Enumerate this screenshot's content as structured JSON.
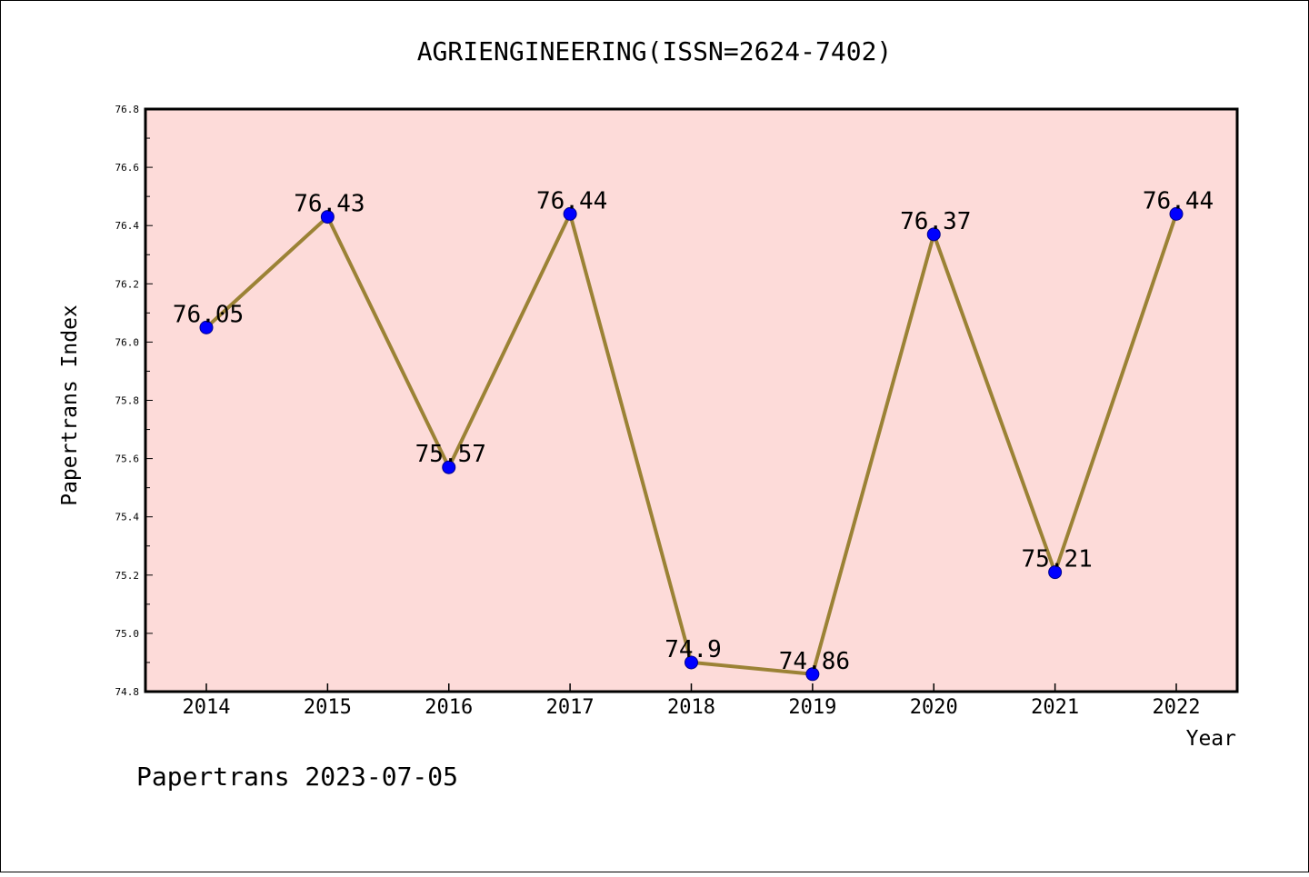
{
  "chart_data": {
    "type": "line",
    "title": "AGRIENGINEERING(ISSN=2624-7402)",
    "xlabel": "Year",
    "ylabel": "Papertrans Index",
    "categories": [
      "2014",
      "2015",
      "2016",
      "2017",
      "2018",
      "2019",
      "2020",
      "2021",
      "2022"
    ],
    "series": [
      {
        "values": [
          76.05,
          76.43,
          75.57,
          76.44,
          74.9,
          74.86,
          76.37,
          75.21,
          76.44
        ],
        "labels": [
          "76.05",
          "76.43",
          "75.57",
          "76.44",
          "74.9",
          "74.86",
          "76.37",
          "75.21",
          "76.44"
        ]
      }
    ],
    "ylim": [
      74.8,
      76.8
    ],
    "yticks": [
      "74.8",
      "75.0",
      "75.2",
      "75.4",
      "75.6",
      "75.8",
      "76.0",
      "76.2",
      "76.4",
      "76.6",
      "76.8"
    ],
    "grid": false,
    "legend": "none",
    "colors": {
      "plot_background": "#FDDBD9",
      "line": "#9B8235",
      "marker": "#0000FF",
      "marker_edge": "#00008B"
    }
  },
  "footer": "Papertrans 2023-07-05"
}
